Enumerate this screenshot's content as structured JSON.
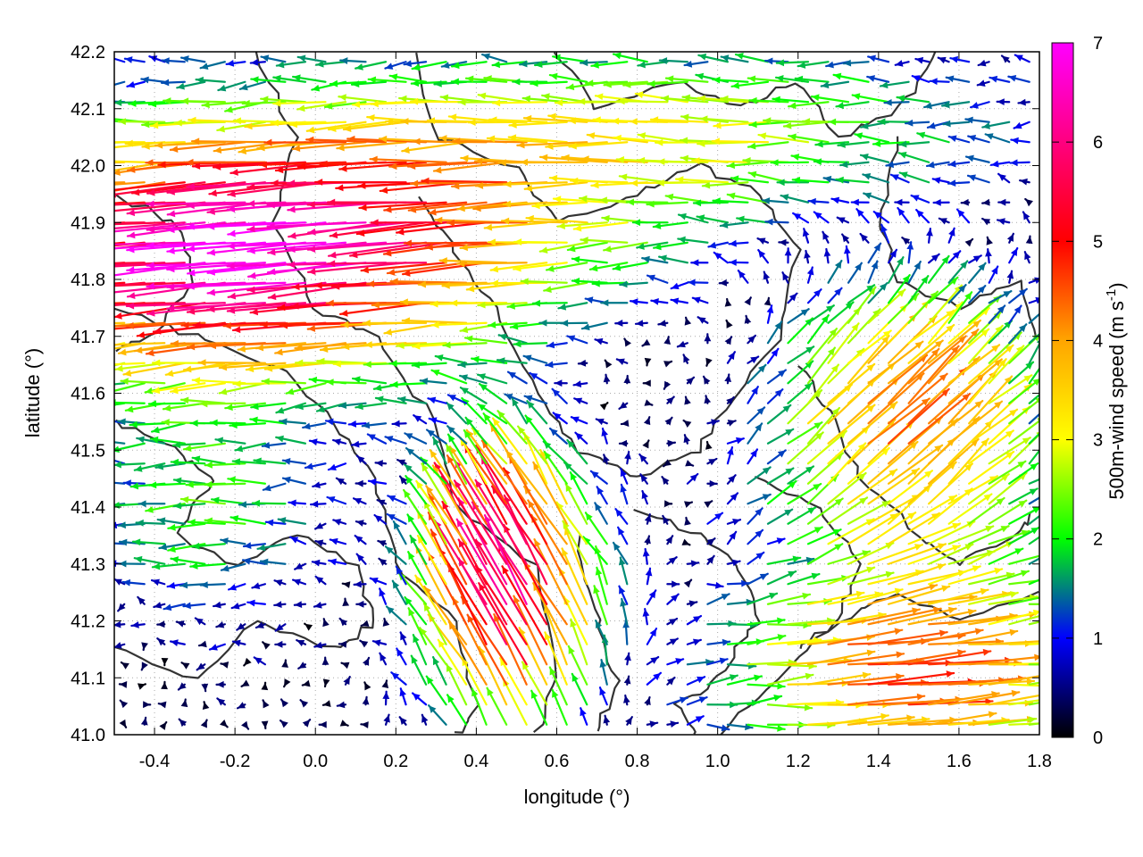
{
  "chart_data": {
    "type": "vector-field",
    "title": "",
    "xlabel": "longitude (°)",
    "ylabel": "latitude (°)",
    "xlim": [
      -0.5,
      1.8
    ],
    "ylim": [
      41.0,
      42.2
    ],
    "x_ticks": [
      "-0.4",
      "-0.2",
      "0.0",
      "0.2",
      "0.4",
      "0.6",
      "0.8",
      "1.0",
      "1.2",
      "1.4",
      "1.6",
      "1.8"
    ],
    "y_ticks": [
      "41.0",
      "41.1",
      "41.2",
      "41.3",
      "41.4",
      "41.5",
      "41.6",
      "41.7",
      "41.8",
      "41.9",
      "42.0",
      "42.1",
      "42.2"
    ],
    "grid": "dotted",
    "legend": "none",
    "colorbar": {
      "label_main": "500m-wind speed (m s",
      "label_sup": "-1",
      "label_end": ")",
      "range": [
        0,
        7
      ],
      "ticks": [
        "0",
        "1",
        "2",
        "3",
        "4",
        "5",
        "6",
        "7"
      ],
      "placement": "right",
      "colors": [
        "#000000",
        "#0000ff",
        "#00ff00",
        "#ffff00",
        "#ffa500",
        "#ff0000",
        "#ff00ff"
      ]
    },
    "contour_color": "#333333",
    "wind_regions": [
      {
        "area": "north-west (41.7-42.2 N, -0.5-0.9 E)",
        "direction": "westward, slightly southward",
        "speed_range": [
          4,
          7
        ]
      },
      {
        "area": "north-central (41.9-42.2 N, 0.2-1.8 E)",
        "direction": "mostly westward",
        "speed_range": [
          1,
          4
        ]
      },
      {
        "area": "center (41.5-41.7 N, 0.6-1.1 E)",
        "direction": "westward, weak",
        "speed_range": [
          0,
          2
        ]
      },
      {
        "area": "south-center (41.0-41.5 N, 0.3-0.8 E)",
        "direction": "north-west to north",
        "speed_range": [
          5,
          7
        ]
      },
      {
        "area": "east (41.3-41.8 N, 1.1-1.8 E)",
        "direction": "north-east",
        "speed_range": [
          3,
          6
        ]
      },
      {
        "area": "south-east (41.0-41.3 N, 1.0-1.8 E)",
        "direction": "eastward",
        "speed_range": [
          3.5,
          5
        ]
      },
      {
        "area": "west (41.2-41.6 N, -0.5-0.2 E)",
        "direction": "westward",
        "speed_range": [
          1,
          3
        ]
      }
    ]
  }
}
